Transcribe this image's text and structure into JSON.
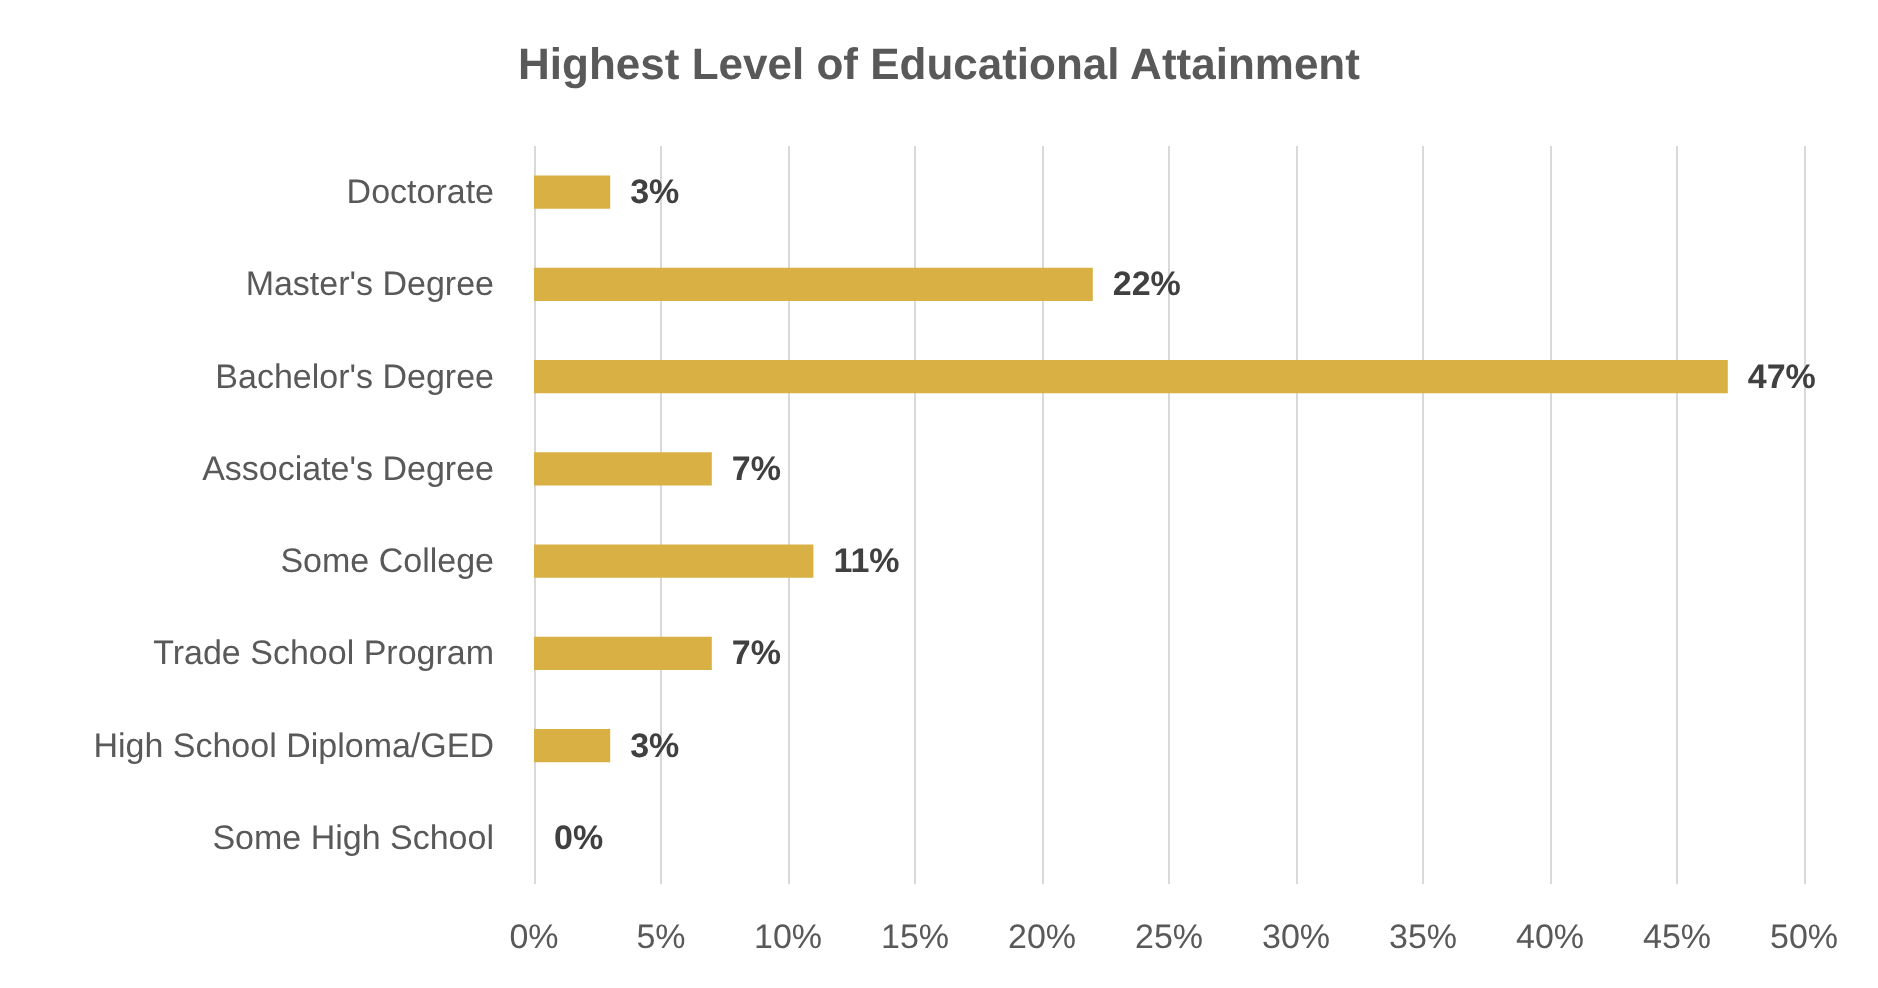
{
  "chart_data": {
    "type": "bar",
    "orientation": "horizontal",
    "title": "Highest Level of Educational Attainment",
    "categories": [
      "Doctorate",
      "Master's Degree",
      "Bachelor's Degree",
      "Associate's Degree",
      "Some College",
      "Trade School Program",
      "High School Diploma/GED",
      "Some High School"
    ],
    "values": [
      3,
      22,
      47,
      7,
      11,
      7,
      3,
      0
    ],
    "value_labels": [
      "3%",
      "22%",
      "47%",
      "7%",
      "11%",
      "7%",
      "3%",
      "0%"
    ],
    "color": "#d9b043",
    "xlim": [
      0,
      50
    ],
    "xticks": [
      {
        "value": 0,
        "label": "0%"
      },
      {
        "value": 5,
        "label": "5%"
      },
      {
        "value": 10,
        "label": "10%"
      },
      {
        "value": 15,
        "label": "15%"
      },
      {
        "value": 20,
        "label": "20%"
      },
      {
        "value": 25,
        "label": "25%"
      },
      {
        "value": 30,
        "label": "30%"
      },
      {
        "value": 35,
        "label": "35%"
      },
      {
        "value": 40,
        "label": "40%"
      },
      {
        "value": 45,
        "label": "45%"
      },
      {
        "value": 50,
        "label": "50%"
      }
    ],
    "grid": "x"
  }
}
